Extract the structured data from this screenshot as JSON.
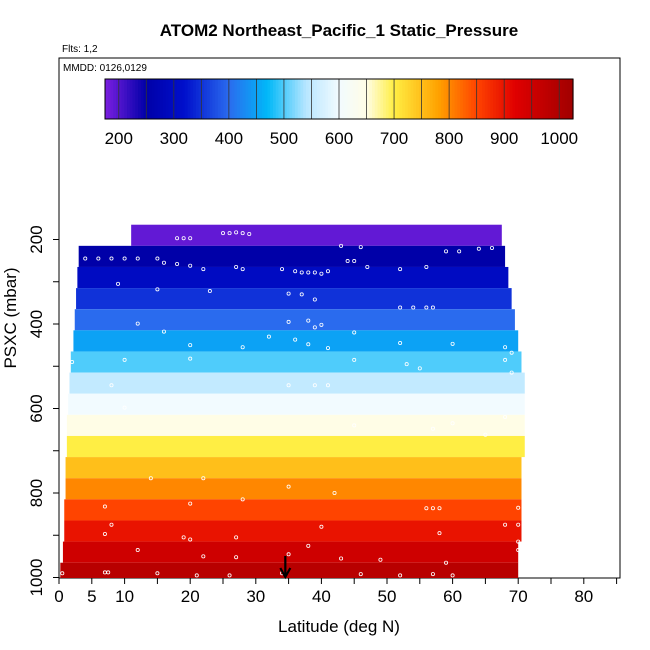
{
  "chart_data": {
    "type": "heatmap",
    "title": "ATOM2 Northeast_Pacific_1 Static_Pressure",
    "flights_label": "Flts: 1,2",
    "dates_label": "MMDD: 0126,0129",
    "xlabel": "Latitude (deg N)",
    "ylabel": "PSXC (mbar)",
    "xlim": [
      0,
      85
    ],
    "ylim": [
      1000,
      0
    ],
    "x_ticks": [
      "0",
      "5",
      "10",
      "20",
      "30",
      "40",
      "50",
      "60",
      "70",
      "80"
    ],
    "y_ticks": [
      "200",
      "400",
      "600",
      "800",
      "1000"
    ],
    "colorbar": {
      "range": [
        175,
        1025
      ],
      "tick_labels": [
        "200",
        "300",
        "400",
        "500",
        "600",
        "700",
        "800",
        "900",
        "1000"
      ],
      "stops": [
        {
          "v": 175,
          "color": "#7b1fe0"
        },
        {
          "v": 250,
          "color": "#0000a8"
        },
        {
          "v": 320,
          "color": "#0010cc"
        },
        {
          "v": 400,
          "color": "#2a6bee"
        },
        {
          "v": 470,
          "color": "#00b8f8"
        },
        {
          "v": 540,
          "color": "#b8e6ff"
        },
        {
          "v": 600,
          "color": "#f2fbff"
        },
        {
          "v": 650,
          "color": "#fffde6"
        },
        {
          "v": 700,
          "color": "#ffee44"
        },
        {
          "v": 780,
          "color": "#ffa200"
        },
        {
          "v": 850,
          "color": "#ff4400"
        },
        {
          "v": 920,
          "color": "#e00000"
        },
        {
          "v": 1025,
          "color": "#a00000"
        }
      ]
    },
    "bins": [
      {
        "p0": 165,
        "p1": 215,
        "lat": [
          11,
          67.5
        ],
        "value": 190
      },
      {
        "p0": 215,
        "p1": 265,
        "lat": [
          3,
          68
        ],
        "value": 250
      },
      {
        "p0": 265,
        "p1": 315,
        "lat": [
          2.8,
          68.5
        ],
        "value": 300
      },
      {
        "p0": 315,
        "p1": 365,
        "lat": [
          2.6,
          69
        ],
        "value": 350
      },
      {
        "p0": 365,
        "p1": 415,
        "lat": [
          2.4,
          69.5
        ],
        "value": 400
      },
      {
        "p0": 415,
        "p1": 465,
        "lat": [
          2.2,
          70
        ],
        "value": 450
      },
      {
        "p0": 465,
        "p1": 515,
        "lat": [
          1.8,
          70.5
        ],
        "value": 500
      },
      {
        "p0": 515,
        "p1": 565,
        "lat": [
          1.6,
          71
        ],
        "value": 550
      },
      {
        "p0": 565,
        "p1": 615,
        "lat": [
          1.4,
          71
        ],
        "value": 600
      },
      {
        "p0": 615,
        "p1": 665,
        "lat": [
          1.2,
          71
        ],
        "value": 650
      },
      {
        "p0": 665,
        "p1": 715,
        "lat": [
          1.2,
          71
        ],
        "value": 700
      },
      {
        "p0": 715,
        "p1": 765,
        "lat": [
          1.0,
          70.5
        ],
        "value": 750
      },
      {
        "p0": 765,
        "p1": 815,
        "lat": [
          1.0,
          70.5
        ],
        "value": 800
      },
      {
        "p0": 815,
        "p1": 865,
        "lat": [
          0.8,
          70.5
        ],
        "value": 850
      },
      {
        "p0": 865,
        "p1": 915,
        "lat": [
          0.8,
          70.5
        ],
        "value": 900
      },
      {
        "p0": 915,
        "p1": 965,
        "lat": [
          0.6,
          70
        ],
        "value": 950
      },
      {
        "p0": 965,
        "p1": 1015,
        "lat": [
          0.2,
          70
        ],
        "value": 985
      }
    ],
    "marker": {
      "lat": 34.5,
      "label": "arrow"
    },
    "points": [
      [
        18,
        197
      ],
      [
        19,
        197
      ],
      [
        20,
        197
      ],
      [
        25,
        185
      ],
      [
        26,
        185
      ],
      [
        27,
        183
      ],
      [
        28,
        185
      ],
      [
        29,
        187
      ],
      [
        43,
        215
      ],
      [
        46,
        218
      ],
      [
        59,
        228
      ],
      [
        61,
        228
      ],
      [
        64,
        222
      ],
      [
        66,
        220
      ],
      [
        4,
        245
      ],
      [
        6,
        245
      ],
      [
        8,
        245
      ],
      [
        10,
        245
      ],
      [
        12,
        245
      ],
      [
        15,
        245
      ],
      [
        16,
        255
      ],
      [
        18,
        258
      ],
      [
        20,
        262
      ],
      [
        22,
        270
      ],
      [
        27,
        265
      ],
      [
        28,
        270
      ],
      [
        34,
        270
      ],
      [
        36,
        275
      ],
      [
        37,
        278
      ],
      [
        38,
        278
      ],
      [
        39,
        278
      ],
      [
        40,
        281
      ],
      [
        41,
        275
      ],
      [
        44,
        251
      ],
      [
        45,
        251
      ],
      [
        47,
        265
      ],
      [
        52,
        270
      ],
      [
        56,
        265
      ],
      [
        9,
        305
      ],
      [
        15,
        318
      ],
      [
        23,
        322
      ],
      [
        35,
        328
      ],
      [
        37,
        330
      ],
      [
        39,
        342
      ],
      [
        52,
        361
      ],
      [
        54,
        361
      ],
      [
        56,
        361
      ],
      [
        57,
        361
      ],
      [
        12,
        399
      ],
      [
        35,
        395
      ],
      [
        38,
        392
      ],
      [
        39,
        408
      ],
      [
        40,
        402
      ],
      [
        16,
        418
      ],
      [
        20,
        450
      ],
      [
        28,
        455
      ],
      [
        32,
        430
      ],
      [
        36,
        437
      ],
      [
        38,
        448
      ],
      [
        41,
        457
      ],
      [
        45,
        420
      ],
      [
        52,
        445
      ],
      [
        60,
        447
      ],
      [
        68,
        455
      ],
      [
        69,
        468
      ],
      [
        2,
        490
      ],
      [
        10,
        485
      ],
      [
        20,
        482
      ],
      [
        45,
        485
      ],
      [
        53,
        495
      ],
      [
        55,
        505
      ],
      [
        68,
        485
      ],
      [
        69,
        515
      ],
      [
        8,
        545
      ],
      [
        35,
        545
      ],
      [
        39,
        545
      ],
      [
        41,
        545
      ],
      [
        10,
        598
      ],
      [
        45,
        640
      ],
      [
        57,
        648
      ],
      [
        60,
        635
      ],
      [
        65,
        662
      ],
      [
        68,
        620
      ],
      [
        14,
        765
      ],
      [
        20,
        825
      ],
      [
        22,
        765
      ],
      [
        35,
        785
      ],
      [
        42,
        800
      ],
      [
        56,
        836
      ],
      [
        57,
        836
      ],
      [
        58,
        836
      ],
      [
        7,
        832
      ],
      [
        28,
        815
      ],
      [
        70,
        835
      ],
      [
        8,
        875
      ],
      [
        19,
        905
      ],
      [
        27,
        905
      ],
      [
        40,
        880
      ],
      [
        58,
        895
      ],
      [
        68,
        875
      ],
      [
        70,
        875
      ],
      [
        7,
        897
      ],
      [
        20,
        910
      ],
      [
        12,
        935
      ],
      [
        22,
        950
      ],
      [
        27,
        952
      ],
      [
        35,
        945
      ],
      [
        38,
        925
      ],
      [
        43,
        955
      ],
      [
        49,
        958
      ],
      [
        59,
        965
      ],
      [
        70,
        915
      ],
      [
        70,
        935
      ],
      [
        0.5,
        990
      ],
      [
        7,
        988
      ],
      [
        7.5,
        988
      ],
      [
        15,
        990
      ],
      [
        21,
        995
      ],
      [
        26,
        995
      ],
      [
        34,
        990
      ],
      [
        46,
        992
      ],
      [
        52,
        995
      ],
      [
        57,
        992
      ],
      [
        60,
        995
      ]
    ]
  }
}
